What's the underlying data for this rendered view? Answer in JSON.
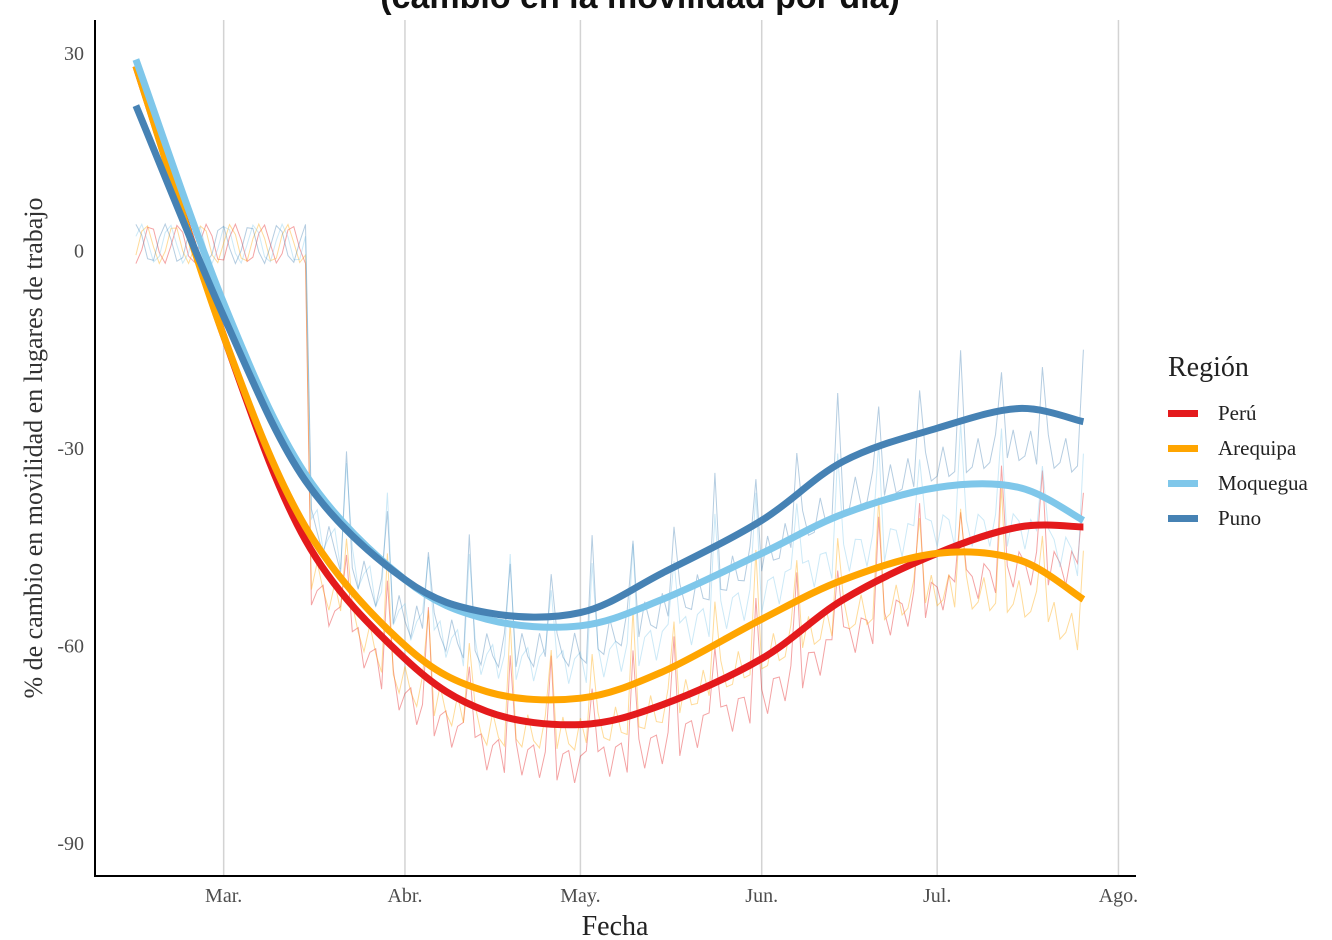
{
  "chart_data": {
    "type": "line",
    "title": "(cambio en la movilidad por día)",
    "xlabel": "Fecha",
    "ylabel": "% de cambio en movilidad en lugares de trabajo",
    "x_ticks": [
      "Mar.",
      "Abr.",
      "May.",
      "Jun.",
      "Jul.",
      "Ago."
    ],
    "x_tick_dates": [
      "2020-03-01",
      "2020-04-01",
      "2020-05-01",
      "2020-06-01",
      "2020-07-01",
      "2020-08-01"
    ],
    "y_ticks": [
      30,
      0,
      -30,
      -60,
      -90
    ],
    "xlim": [
      "2020-02-08",
      "2020-08-04"
    ],
    "ylim": [
      -95,
      35
    ],
    "x_gridlines": true,
    "y_gridlines": false,
    "legend_title": "Región",
    "legend_position": "right",
    "series": [
      {
        "name": "Perú",
        "color": "#e41a1c",
        "x": [
          "2020-02-15",
          "2020-03-01",
          "2020-03-15",
          "2020-04-01",
          "2020-04-15",
          "2020-05-01",
          "2020-05-15",
          "2020-06-01",
          "2020-06-15",
          "2020-07-01",
          "2020-07-15",
          "2020-07-26"
        ],
        "y": [
          28,
          -13,
          -44,
          -62,
          -70,
          -72,
          -69,
          -62,
          -53,
          -46,
          -42,
          -42
        ]
      },
      {
        "name": "Arequipa",
        "color": "#ffa500",
        "x": [
          "2020-02-15",
          "2020-03-01",
          "2020-03-15",
          "2020-04-01",
          "2020-04-15",
          "2020-05-01",
          "2020-05-15",
          "2020-06-01",
          "2020-06-15",
          "2020-07-01",
          "2020-07-15",
          "2020-07-26"
        ],
        "y": [
          28,
          -13,
          -42,
          -60,
          -67,
          -68,
          -64,
          -56,
          -50,
          -46,
          -47,
          -53
        ]
      },
      {
        "name": "Moquegua",
        "color": "#7fc7ea",
        "x": [
          "2020-02-15",
          "2020-03-01",
          "2020-03-15",
          "2020-04-01",
          "2020-04-15",
          "2020-05-01",
          "2020-05-15",
          "2020-06-01",
          "2020-06-15",
          "2020-07-01",
          "2020-07-15",
          "2020-07-26"
        ],
        "y": [
          29,
          -8,
          -34,
          -50,
          -56,
          -57,
          -53,
          -46,
          -40,
          -36,
          -36,
          -41
        ]
      },
      {
        "name": "Puno",
        "color": "#4682b4",
        "x": [
          "2020-02-15",
          "2020-03-01",
          "2020-03-15",
          "2020-04-01",
          "2020-04-15",
          "2020-05-01",
          "2020-05-15",
          "2020-06-01",
          "2020-06-15",
          "2020-07-01",
          "2020-07-15",
          "2020-07-26"
        ],
        "y": [
          22,
          -10,
          -35,
          -50,
          -55,
          -55,
          -49,
          -41,
          -32,
          -27,
          -24,
          -26
        ]
      }
    ]
  }
}
